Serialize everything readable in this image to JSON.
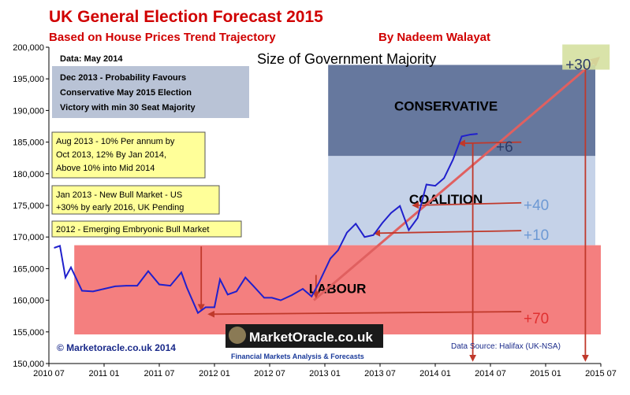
{
  "chart_data": {
    "type": "line",
    "title": "UK General Election Forecast 2015",
    "subtitle": "Based on House Prices Trend Trajectory",
    "author": "By Nadeem Walayat",
    "chart_heading": "Size of Government Majority",
    "data_date": "Data: May 2014",
    "credit": "© Marketoracle.co.uk 2014",
    "data_source": "Data Source: Halifax (UK-NSA)",
    "logo": {
      "name": "MarketOracle.co.uk",
      "tagline": "Financial Markets Analysis & Forecasts"
    },
    "x_ticks": [
      "2010 07",
      "2011 01",
      "2011 07",
      "2012 01",
      "2012 07",
      "2013 01",
      "2013 07",
      "2014 01",
      "2014 07",
      "2015 01",
      "2015 07"
    ],
    "y_ticks": [
      "150,000",
      "155,000",
      "160,000",
      "165,000",
      "170,000",
      "175,000",
      "180,000",
      "185,000",
      "190,000",
      "195,000",
      "200,000"
    ],
    "xlim": [
      2010.5,
      2015.5
    ],
    "ylim": [
      150000,
      200000
    ],
    "series": [
      {
        "color": "#2020cc",
        "x": [
          2010.55,
          2010.6,
          2010.65,
          2010.7,
          2010.8,
          2010.9,
          2011.0,
          2011.1,
          2011.2,
          2011.3,
          2011.4,
          2011.5,
          2011.6,
          2011.7,
          2011.75,
          2011.85,
          2011.92,
          2012.0,
          2012.05,
          2012.12,
          2012.2,
          2012.28,
          2012.35,
          2012.45,
          2012.52,
          2012.6,
          2012.7,
          2012.8,
          2012.88,
          2012.95,
          2013.05,
          2013.12,
          2013.2,
          2013.28,
          2013.36,
          2013.44,
          2013.52,
          2013.6,
          2013.68,
          2013.76,
          2013.84,
          2013.92,
          2014.0,
          2014.08,
          2014.16,
          2014.24,
          2014.32,
          2014.38
        ],
        "values": [
          168300,
          168600,
          163600,
          165200,
          161500,
          161400,
          161800,
          162200,
          162300,
          162300,
          164600,
          162500,
          162300,
          164400,
          162000,
          158000,
          158900,
          158900,
          163300,
          160900,
          161400,
          163600,
          162300,
          160400,
          160400,
          160000,
          160800,
          161800,
          160600,
          162900,
          166600,
          167900,
          170700,
          172100,
          170000,
          170300,
          172200,
          173800,
          174900,
          171100,
          173000,
          178300,
          178100,
          179300,
          182200,
          185900,
          186200,
          186300
        ]
      }
    ],
    "zones": [
      {
        "label": "CONSERVATIVE",
        "x0": 2013.03,
        "x1": 2015.45,
        "y0": 182800,
        "y1": 197200,
        "color": "#66789e"
      },
      {
        "label": "COALITION",
        "x0": 2013.03,
        "x1": 2015.45,
        "y0": 168700,
        "y1": 182800,
        "color": "#c5d2e8"
      },
      {
        "label": "LABOUR",
        "x0": 2010.73,
        "x1": 2015.5,
        "y0": 154600,
        "y1": 168700,
        "color": "#f47f7f"
      }
    ],
    "trend_line": {
      "from": [
        2012.9,
        160000
      ],
      "to": [
        2015.48,
        198300
      ]
    },
    "majority_labels": [
      {
        "text": "+30",
        "x": 2015.18,
        "y": 197200,
        "color": "#2b3a66"
      },
      {
        "text": "+6",
        "x": 2014.55,
        "y": 184200,
        "color": "#2b3a66"
      },
      {
        "text": "+40",
        "x": 2014.8,
        "y": 175000,
        "color": "#6d99d4"
      },
      {
        "text": "+10",
        "x": 2014.8,
        "y": 170300,
        "color": "#6d99d4"
      },
      {
        "text": "+70",
        "x": 2014.8,
        "y": 157100,
        "color": "#e03030"
      }
    ],
    "annotations": [
      {
        "lines": [
          "Dec 2013 - Probability Favours",
          "Conservative May 2015 Election",
          "Victory with min 30 Seat Majority"
        ],
        "bold_prefix": ""
      },
      {
        "lines": [
          "Aug 2013 - 10% Per annum by",
          "Oct 2013, 12% By Jan 2014,",
          "Above 10% into Mid 2014"
        ],
        "bold_prefix": "Aug 2013"
      },
      {
        "lines": [
          "Jan 2013 - New Bull Market - US",
          "+30% by early 2016, UK Pending"
        ],
        "bold_prefix": "Jan 2013"
      },
      {
        "lines": [
          "2012 - Emerging Embryonic Bull Market"
        ],
        "bold_prefix": "2012"
      }
    ],
    "colors": {
      "title": "#d00000",
      "line": "#2020cc",
      "arrow": "#c0392b",
      "note_box": "#ffff99"
    }
  }
}
